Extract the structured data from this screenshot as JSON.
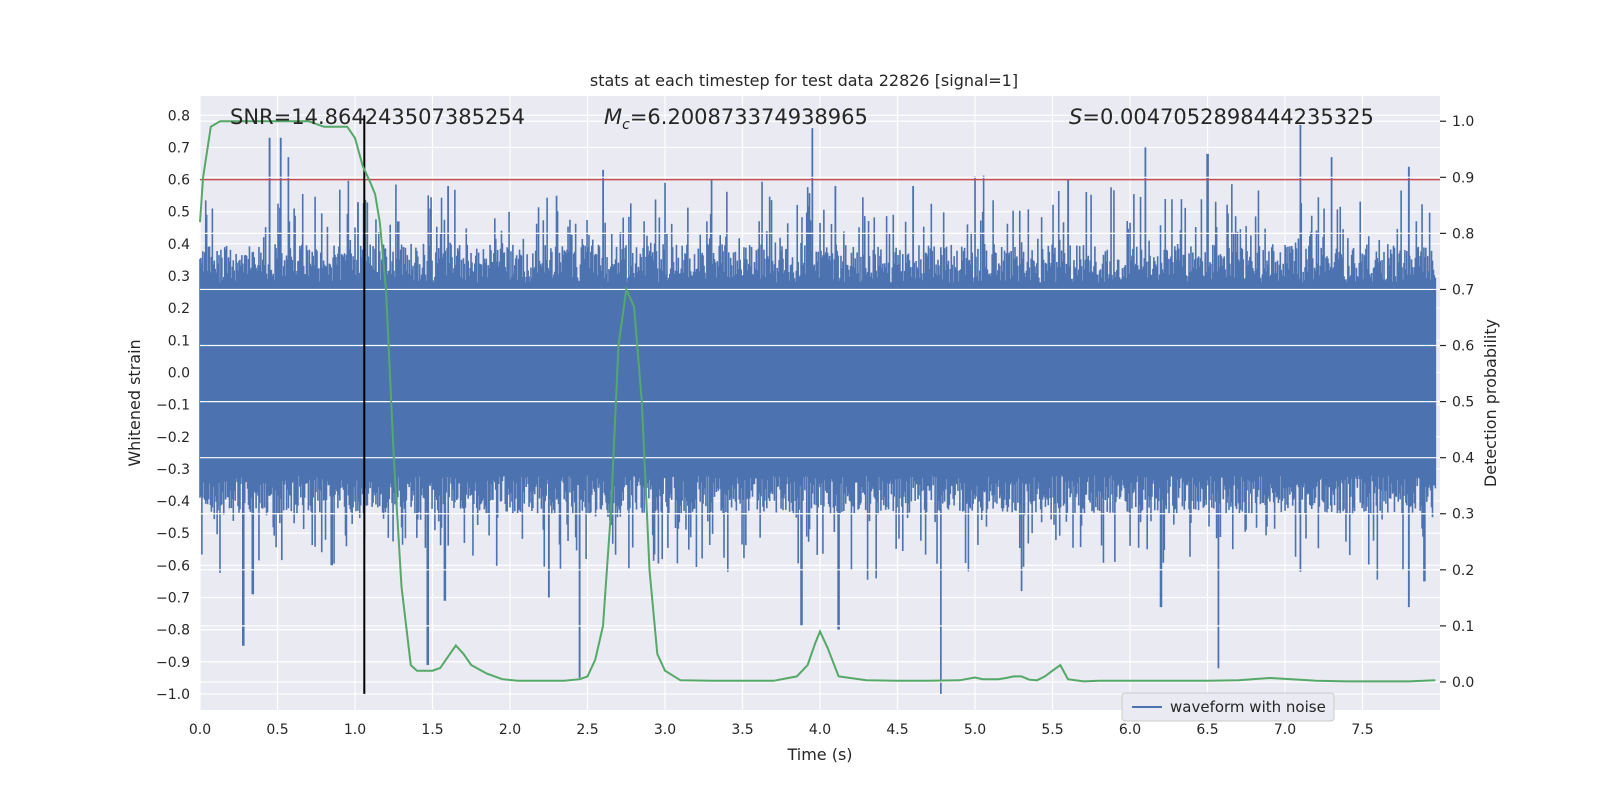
{
  "chart_data": {
    "type": "line",
    "title": "stats at each timestep for test data 22826 [signal=1]",
    "xlabel": "Time (s)",
    "ylabel_left": "Whitened strain",
    "ylabel_right": "Detection probability",
    "xlim": [
      0.0,
      8.0
    ],
    "ylim_left": [
      -1.05,
      0.86
    ],
    "ylim_right": [
      -0.05,
      1.045
    ],
    "x_ticks": [
      "0.0",
      "0.5",
      "1.0",
      "1.5",
      "2.0",
      "2.5",
      "3.0",
      "3.5",
      "4.0",
      "4.5",
      "5.0",
      "5.5",
      "6.0",
      "6.5",
      "7.0",
      "7.5"
    ],
    "y_left_ticks": [
      "0.8",
      "0.7",
      "0.6",
      "0.5",
      "0.4",
      "0.3",
      "0.2",
      "0.1",
      "0.0",
      "-0.1",
      "-0.2",
      "-0.3",
      "-0.4",
      "-0.5",
      "-0.6",
      "-0.7",
      "-0.8",
      "-0.9",
      "-1.0"
    ],
    "y_right_ticks": [
      "1.0",
      "0.9",
      "0.8",
      "0.7",
      "0.6",
      "0.5",
      "0.4",
      "0.3",
      "0.2",
      "0.1",
      "0.0"
    ],
    "grid": true,
    "annotations": {
      "snr": "SNR=14.864243507385254",
      "mc_symbol": "M",
      "mc_sub": "c",
      "mc_value": "=6.200873374938965",
      "s_symbol": "S",
      "s_value": "=0.0047052898444235325"
    },
    "threshold": {
      "value": 0.6,
      "color": "#c44e52"
    },
    "marker_line": {
      "x": 1.06,
      "y_range": [
        -1.0,
        0.8
      ],
      "color": "#000000"
    },
    "series": [
      {
        "name": "waveform with noise",
        "axis": "left",
        "color": "#4c72b0",
        "description_envelope": {
          "typical_range": [
            -0.32,
            0.28
          ],
          "peak_highs": [
            [
              0.45,
              0.73
            ],
            [
              0.52,
              0.73
            ],
            [
              0.57,
              0.67
            ],
            [
              1.02,
              0.53
            ],
            [
              1.28,
              0.47
            ],
            [
              1.6,
              0.58
            ],
            [
              2.3,
              0.55
            ],
            [
              2.6,
              0.63
            ],
            [
              3.0,
              0.59
            ],
            [
              3.3,
              0.6
            ],
            [
              3.95,
              0.76
            ],
            [
              4.1,
              0.58
            ],
            [
              4.6,
              0.58
            ],
            [
              5.0,
              0.61
            ],
            [
              5.6,
              0.6
            ],
            [
              6.1,
              0.7
            ],
            [
              6.5,
              0.68
            ],
            [
              7.1,
              0.77
            ],
            [
              7.3,
              0.67
            ],
            [
              7.8,
              0.64
            ]
          ],
          "peak_lows": [
            [
              0.28,
              -0.85
            ],
            [
              0.34,
              -0.69
            ],
            [
              0.85,
              -0.6
            ],
            [
              1.47,
              -0.91
            ],
            [
              1.58,
              -0.71
            ],
            [
              2.25,
              -0.7
            ],
            [
              2.45,
              -0.95
            ],
            [
              3.88,
              -0.79
            ],
            [
              4.12,
              -0.8
            ],
            [
              4.78,
              -1.0
            ],
            [
              5.3,
              -0.68
            ],
            [
              6.2,
              -0.73
            ],
            [
              6.57,
              -0.92
            ],
            [
              7.1,
              -0.62
            ],
            [
              7.8,
              -0.73
            ],
            [
              7.9,
              -0.65
            ]
          ]
        }
      },
      {
        "name": "",
        "axis": "right",
        "color": "#55a868",
        "x": [
          0.0,
          0.02,
          0.07,
          0.13,
          0.2,
          0.3,
          0.4,
          0.5,
          0.6,
          0.7,
          0.8,
          0.9,
          0.95,
          1.0,
          1.05,
          1.1,
          1.13,
          1.16,
          1.2,
          1.25,
          1.3,
          1.36,
          1.4,
          1.45,
          1.5,
          1.55,
          1.6,
          1.65,
          1.7,
          1.75,
          1.85,
          1.95,
          2.05,
          2.2,
          2.35,
          2.45,
          2.5,
          2.55,
          2.6,
          2.65,
          2.7,
          2.75,
          2.8,
          2.85,
          2.9,
          2.95,
          3.0,
          3.1,
          3.3,
          3.5,
          3.7,
          3.85,
          3.92,
          3.97,
          4.0,
          4.05,
          4.12,
          4.3,
          4.5,
          4.7,
          4.9,
          5.0,
          5.05,
          5.15,
          5.2,
          5.25,
          5.3,
          5.35,
          5.4,
          5.45,
          5.5,
          5.55,
          5.6,
          5.7,
          5.8,
          6.0,
          6.2,
          6.5,
          6.7,
          6.9,
          7.1,
          7.2,
          7.4,
          7.6,
          7.8,
          7.97
        ],
        "y": [
          0.82,
          0.9,
          0.99,
          1.0,
          1.0,
          1.0,
          1.0,
          1.0,
          1.0,
          1.0,
          0.99,
          0.99,
          0.99,
          0.97,
          0.92,
          0.89,
          0.87,
          0.82,
          0.7,
          0.4,
          0.17,
          0.03,
          0.02,
          0.02,
          0.02,
          0.025,
          0.045,
          0.065,
          0.05,
          0.03,
          0.015,
          0.005,
          0.002,
          0.002,
          0.002,
          0.005,
          0.01,
          0.04,
          0.1,
          0.3,
          0.6,
          0.7,
          0.67,
          0.5,
          0.2,
          0.05,
          0.02,
          0.003,
          0.002,
          0.002,
          0.002,
          0.01,
          0.03,
          0.07,
          0.09,
          0.06,
          0.01,
          0.003,
          0.002,
          0.002,
          0.003,
          0.008,
          0.005,
          0.005,
          0.007,
          0.01,
          0.01,
          0.004,
          0.003,
          0.01,
          0.02,
          0.03,
          0.005,
          0.001,
          0.002,
          0.002,
          0.002,
          0.002,
          0.003,
          0.007,
          0.004,
          0.002,
          0.001,
          0.001,
          0.001,
          0.003
        ]
      }
    ],
    "legend": {
      "placement": "lower-right",
      "entries": [
        "waveform with noise"
      ]
    }
  }
}
